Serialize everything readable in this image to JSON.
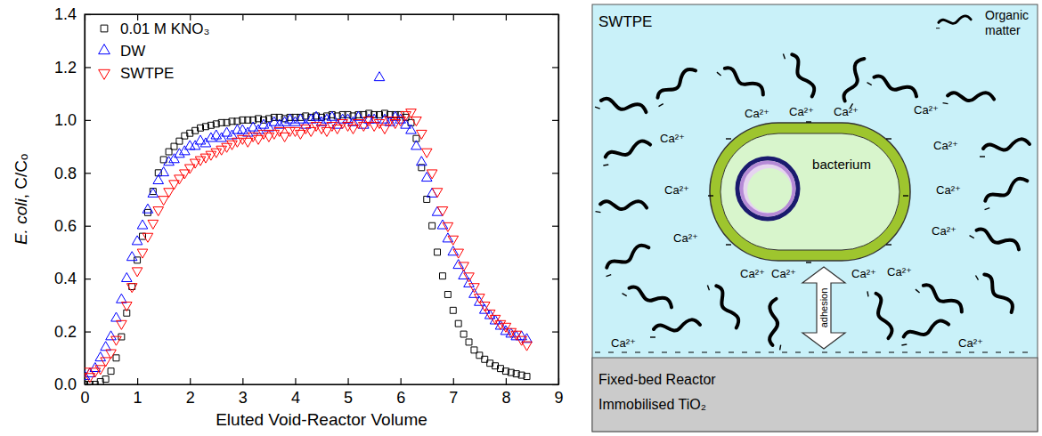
{
  "chart_data": {
    "type": "scatter",
    "x_label": "Eluted Void-Reactor Volume",
    "y_label": "E. coli, C/Cₒ",
    "xlim": [
      0,
      9
    ],
    "ylim": [
      0,
      1.4
    ],
    "xticks": [
      0,
      1,
      2,
      3,
      4,
      5,
      6,
      7,
      8,
      9
    ],
    "yticks": [
      {
        "value": 0,
        "label": "0.0"
      },
      0.2,
      0.4,
      0.6,
      0.8,
      {
        "value": 1,
        "label": "1.0"
      },
      1.2,
      1.4
    ],
    "grid": false,
    "legend": "top-left",
    "x": [
      0,
      0.1,
      0.2,
      0.3,
      0.4,
      0.5,
      0.6,
      0.7,
      0.8,
      0.9,
      1.0,
      1.1,
      1.2,
      1.3,
      1.4,
      1.5,
      1.6,
      1.7,
      1.8,
      1.9,
      2.0,
      2.1,
      2.2,
      2.3,
      2.4,
      2.5,
      2.6,
      2.7,
      2.8,
      2.9,
      3.0,
      3.1,
      3.2,
      3.3,
      3.4,
      3.5,
      3.6,
      3.7,
      3.8,
      3.9,
      4.0,
      4.1,
      4.2,
      4.3,
      4.4,
      4.5,
      4.6,
      4.7,
      4.8,
      4.9,
      5.0,
      5.1,
      5.2,
      5.3,
      5.4,
      5.5,
      5.6,
      5.7,
      5.8,
      5.9,
      6.0,
      6.1,
      6.2,
      6.3,
      6.4,
      6.5,
      6.6,
      6.7,
      6.8,
      6.9,
      7.0,
      7.1,
      7.2,
      7.3,
      7.4,
      7.5,
      7.6,
      7.7,
      7.8,
      7.9,
      8.0,
      8.1,
      8.2,
      8.3,
      8.4
    ],
    "series": [
      {
        "name": "0.01 M KNO₃",
        "color": "#000000",
        "marker": "square",
        "values": [
          0,
          0,
          0,
          0.01,
          0.02,
          0.05,
          0.1,
          0.18,
          0.27,
          0.37,
          0.47,
          0.56,
          0.65,
          0.73,
          0.8,
          0.85,
          0.88,
          0.9,
          0.92,
          0.94,
          0.95,
          0.96,
          0.97,
          0.975,
          0.98,
          0.985,
          0.99,
          0.99,
          0.995,
          0.995,
          1.0,
          1.0,
          1.0,
          1.005,
          1.0,
          1.005,
          1.01,
          1.01,
          1.005,
          1.01,
          1.01,
          1.01,
          1.015,
          1.01,
          1.015,
          1.01,
          1.015,
          1.02,
          1.015,
          1.02,
          1.02,
          1.015,
          1.02,
          1.02,
          1.025,
          1.02,
          1.02,
          1.025,
          1.02,
          1.02,
          1.02,
          1.01,
          0.99,
          0.93,
          0.82,
          0.7,
          0.6,
          0.5,
          0.41,
          0.34,
          0.28,
          0.23,
          0.19,
          0.16,
          0.13,
          0.11,
          0.095,
          0.08,
          0.07,
          0.06,
          0.05,
          0.045,
          0.04,
          0.035,
          0.03
        ]
      },
      {
        "name": "DW",
        "color": "#0000ff",
        "marker": "triangle-up",
        "values": [
          0.03,
          0.04,
          0.06,
          0.1,
          0.14,
          0.18,
          0.25,
          0.32,
          0.4,
          0.48,
          0.54,
          0.6,
          0.66,
          0.72,
          0.77,
          0.8,
          0.84,
          0.85,
          0.87,
          0.88,
          0.9,
          0.9,
          0.92,
          0.91,
          0.93,
          0.94,
          0.93,
          0.95,
          0.94,
          0.96,
          0.96,
          0.95,
          0.97,
          0.96,
          0.98,
          0.97,
          0.99,
          0.98,
          0.99,
          1.0,
          0.99,
          1.0,
          0.98,
          1.0,
          1.01,
          0.99,
          1.0,
          1.01,
          0.98,
          1.0,
          1.0,
          0.99,
          1.01,
          0.98,
          1.0,
          1.0,
          1.16,
          1.0,
          0.99,
          1.01,
          1.0,
          0.98,
          0.96,
          0.9,
          0.84,
          0.78,
          0.72,
          0.65,
          0.6,
          0.55,
          0.5,
          0.45,
          0.41,
          0.38,
          0.34,
          0.31,
          0.28,
          0.26,
          0.24,
          0.22,
          0.2,
          0.19,
          0.18,
          0.18,
          0.17
        ]
      },
      {
        "name": "SWTPE",
        "color": "#ff0000",
        "marker": "triangle-down",
        "values": [
          0.05,
          0.03,
          0.05,
          0.06,
          0.09,
          0.12,
          0.17,
          0.23,
          0.3,
          0.37,
          0.43,
          0.5,
          0.56,
          0.61,
          0.66,
          0.7,
          0.73,
          0.76,
          0.78,
          0.8,
          0.82,
          0.84,
          0.85,
          0.86,
          0.87,
          0.88,
          0.89,
          0.9,
          0.91,
          0.92,
          0.93,
          0.92,
          0.94,
          0.93,
          0.95,
          0.94,
          0.95,
          0.96,
          0.94,
          0.96,
          0.96,
          0.95,
          0.97,
          0.96,
          0.98,
          0.97,
          0.96,
          0.98,
          0.97,
          0.99,
          0.98,
          0.97,
          0.99,
          0.98,
          1.0,
          0.98,
          0.99,
          0.97,
          1.0,
          0.99,
          1.0,
          1.02,
          1.03,
          1.0,
          0.95,
          0.88,
          0.8,
          0.73,
          0.66,
          0.6,
          0.55,
          0.5,
          0.45,
          0.41,
          0.37,
          0.33,
          0.3,
          0.27,
          0.25,
          0.23,
          0.22,
          0.2,
          0.19,
          0.17,
          0.15
        ]
      }
    ]
  },
  "diagram": {
    "title": "SWTPE",
    "legend_label": "Organic matter",
    "ion_label": "Ca²⁺",
    "cell_label": "bacterium",
    "arrow_label": "adhesion",
    "substrate_lines": [
      "Fixed-bed Reactor",
      "Immobilised TiO₂"
    ]
  }
}
